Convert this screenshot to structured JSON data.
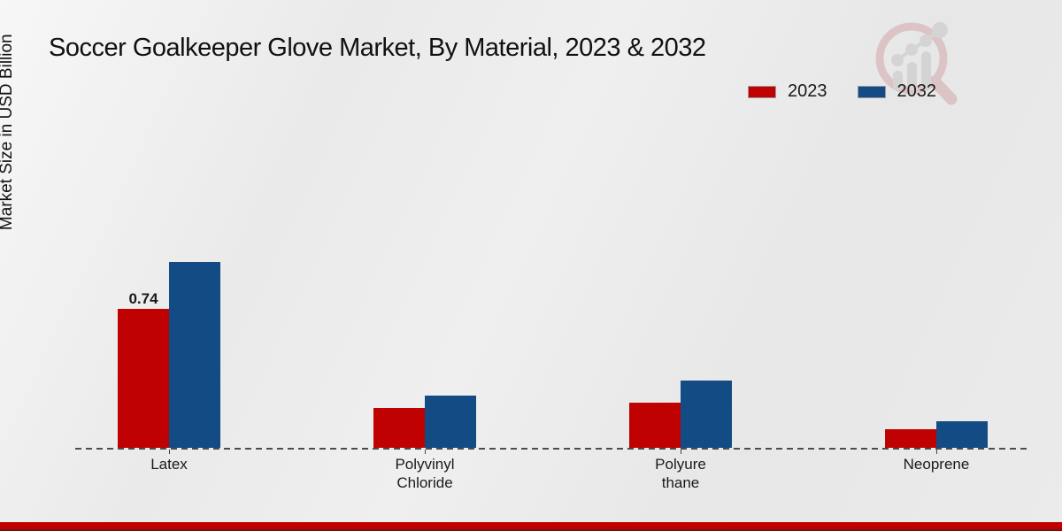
{
  "chart_data": {
    "type": "bar",
    "title": "Soccer Goalkeeper Glove Market, By Material, 2023 & 2032",
    "xlabel": "",
    "ylabel": "Market Size in USD Billion",
    "unit": "USD Billion",
    "categories": [
      "Latex",
      "Polyvinyl Chloride",
      "Polyurethane",
      "Neoprene"
    ],
    "category_display_labels": [
      "Latex",
      "Polyvinyl\nChloride",
      "Polyure\nthane",
      "Neoprene"
    ],
    "series": [
      {
        "name": "2023",
        "color": "#c00101",
        "values": [
          0.74,
          0.21,
          0.24,
          0.1
        ],
        "data_labels": [
          "0.74",
          "",
          "",
          ""
        ]
      },
      {
        "name": "2032",
        "color": "#134b85",
        "values": [
          0.99,
          0.28,
          0.36,
          0.14
        ],
        "data_labels": [
          "",
          "",
          "",
          ""
        ]
      }
    ],
    "ylim": [
      0,
      1.1
    ],
    "grid": false,
    "legend_position": "top-right",
    "baseline_style": "dashed"
  },
  "footer": {
    "band_color": "#c00000",
    "edge_color": "#7c0f12"
  },
  "watermark": {
    "icon": "magnifier-bar-chart-logo",
    "ring_color": "#d4a7ab",
    "glyph_color": "#c6c6c6"
  }
}
